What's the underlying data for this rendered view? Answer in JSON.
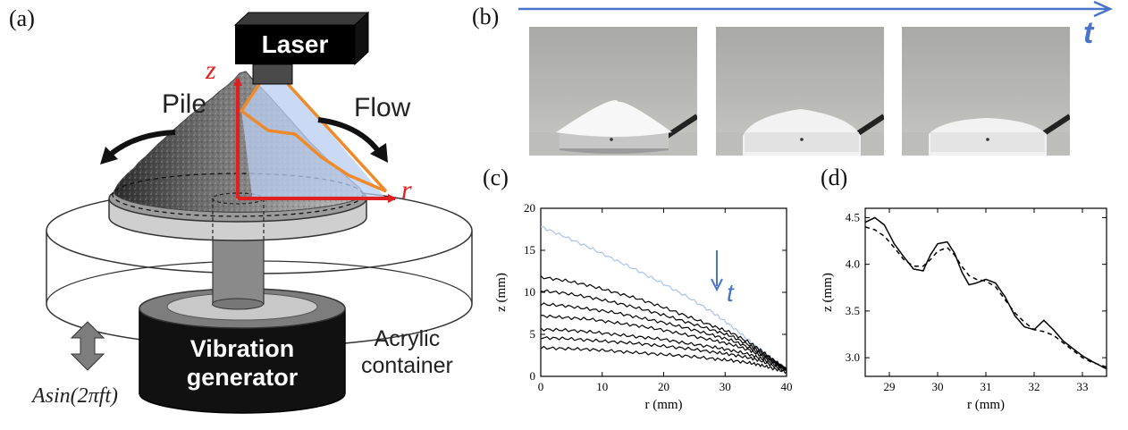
{
  "panels": {
    "a": "(a)",
    "b": "(b)",
    "c": "(c)",
    "d": "(d)"
  },
  "schematic": {
    "laser": "Laser",
    "pile": "Pile",
    "flow": "Flow",
    "axis_z": "z",
    "axis_r": "r",
    "generator_line1": "Vibration",
    "generator_line2": "generator",
    "container_line1": "Acrylic",
    "container_line2": "container",
    "forcing": "Asin(2πft)"
  },
  "time_label": "t",
  "colors": {
    "axis_red": "#e02020",
    "laser_orange": "#ee8a2c",
    "time_blue": "#4a74c8",
    "profile_light": "#a9c0ea"
  },
  "chart_data": [
    {
      "type": "line",
      "panel": "c",
      "xlabel": "r (mm)",
      "ylabel": "z (mm)",
      "xlim": [
        0,
        40
      ],
      "ylim": [
        0,
        20
      ],
      "xticks": [
        0,
        10,
        20,
        30,
        40
      ],
      "yticks": [
        0,
        5,
        10,
        15,
        20
      ],
      "annotation": "t",
      "series": [
        {
          "x": [
            0,
            4,
            8,
            12,
            16,
            20,
            24,
            28,
            31,
            34,
            36,
            38,
            40
          ],
          "y": [
            17.8,
            16.6,
            15.3,
            13.9,
            12.5,
            11.0,
            9.4,
            7.6,
            6.0,
            4.2,
            3.0,
            1.8,
            0.8
          ]
        },
        {
          "x": [
            0,
            4,
            8,
            12,
            16,
            20,
            24,
            28,
            31,
            34,
            36,
            38,
            40
          ],
          "y": [
            11.8,
            11.4,
            10.8,
            10.0,
            9.2,
            8.2,
            7.1,
            6.0,
            5.2,
            4.0,
            3.0,
            1.9,
            0.8
          ]
        },
        {
          "x": [
            0,
            4,
            8,
            12,
            16,
            20,
            24,
            28,
            31,
            34,
            36,
            38,
            40
          ],
          "y": [
            10.2,
            9.9,
            9.4,
            8.8,
            8.1,
            7.3,
            6.4,
            5.5,
            4.8,
            3.7,
            2.8,
            1.8,
            0.8
          ]
        },
        {
          "x": [
            0,
            4,
            8,
            12,
            16,
            20,
            24,
            28,
            31,
            34,
            36,
            38,
            40
          ],
          "y": [
            8.6,
            8.4,
            8.0,
            7.6,
            7.0,
            6.4,
            5.7,
            4.9,
            4.3,
            3.4,
            2.6,
            1.7,
            0.8
          ]
        },
        {
          "x": [
            0,
            4,
            8,
            12,
            16,
            20,
            24,
            28,
            31,
            34,
            36,
            38,
            40
          ],
          "y": [
            7.2,
            7.0,
            6.8,
            6.4,
            6.0,
            5.5,
            4.9,
            4.3,
            3.8,
            3.1,
            2.4,
            1.6,
            0.8
          ]
        },
        {
          "x": [
            0,
            4,
            8,
            12,
            16,
            20,
            24,
            28,
            31,
            34,
            36,
            38,
            40
          ],
          "y": [
            5.6,
            5.5,
            5.3,
            5.0,
            4.7,
            4.4,
            3.9,
            3.5,
            3.1,
            2.6,
            2.1,
            1.4,
            0.8
          ]
        },
        {
          "x": [
            0,
            4,
            8,
            12,
            16,
            20,
            24,
            28,
            31,
            34,
            36,
            38,
            40
          ],
          "y": [
            4.6,
            4.5,
            4.3,
            4.1,
            3.9,
            3.6,
            3.3,
            2.9,
            2.6,
            2.2,
            1.8,
            1.2,
            0.6
          ]
        },
        {
          "x": [
            0,
            4,
            8,
            12,
            16,
            20,
            24,
            28,
            31,
            34,
            36,
            38,
            40
          ],
          "y": [
            3.4,
            3.3,
            3.2,
            3.0,
            2.8,
            2.6,
            2.4,
            2.1,
            1.9,
            1.6,
            1.3,
            0.9,
            0.5
          ]
        }
      ]
    },
    {
      "type": "line",
      "panel": "d",
      "xlabel": "r (mm)",
      "ylabel": "z (mm)",
      "xlim": [
        28.5,
        33.5
      ],
      "ylim": [
        2.8,
        4.6
      ],
      "xticks": [
        29,
        30,
        31,
        32,
        33
      ],
      "yticks": [
        3.0,
        3.5,
        4.0,
        4.5
      ],
      "series": [
        {
          "style": "solid",
          "x": [
            28.5,
            28.7,
            28.9,
            29.1,
            29.3,
            29.5,
            29.7,
            29.85,
            30.0,
            30.2,
            30.35,
            30.5,
            30.65,
            30.8,
            31.0,
            31.2,
            31.4,
            31.6,
            31.8,
            32.0,
            32.2,
            32.4,
            32.6,
            32.8,
            33.0,
            33.2,
            33.5
          ],
          "y": [
            4.45,
            4.5,
            4.42,
            4.22,
            4.08,
            3.95,
            3.93,
            4.1,
            4.22,
            4.24,
            4.12,
            3.92,
            3.78,
            3.8,
            3.84,
            3.8,
            3.65,
            3.45,
            3.33,
            3.3,
            3.4,
            3.3,
            3.18,
            3.1,
            3.02,
            2.96,
            2.88
          ]
        },
        {
          "style": "dashed",
          "x": [
            28.5,
            28.7,
            28.9,
            29.1,
            29.3,
            29.5,
            29.7,
            29.85,
            30.0,
            30.2,
            30.35,
            30.5,
            30.65,
            30.8,
            31.0,
            31.2,
            31.4,
            31.6,
            31.8,
            32.0,
            32.2,
            32.4,
            32.6,
            32.8,
            33.0,
            33.2,
            33.5
          ],
          "y": [
            4.4,
            4.37,
            4.3,
            4.18,
            4.05,
            3.98,
            3.98,
            4.05,
            4.14,
            4.18,
            4.1,
            3.98,
            3.88,
            3.84,
            3.82,
            3.76,
            3.62,
            3.48,
            3.38,
            3.3,
            3.28,
            3.24,
            3.16,
            3.08,
            3.0,
            2.95,
            2.9
          ]
        }
      ]
    }
  ]
}
